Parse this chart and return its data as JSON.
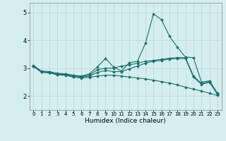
{
  "xlabel": "Humidex (Indice chaleur)",
  "xlim": [
    -0.5,
    23.5
  ],
  "ylim": [
    1.5,
    5.35
  ],
  "yticks": [
    2,
    3,
    4,
    5
  ],
  "xticks": [
    0,
    1,
    2,
    3,
    4,
    5,
    6,
    7,
    8,
    9,
    10,
    11,
    12,
    13,
    14,
    15,
    16,
    17,
    18,
    19,
    20,
    21,
    22,
    23
  ],
  "bg_color": "#d4eeed",
  "line_color": "#1a6e6e",
  "grid_color": "#b8d8d6",
  "lines": [
    {
      "x": [
        0,
        1,
        2,
        3,
        4,
        5,
        6,
        7,
        8,
        9,
        10,
        11,
        12,
        13,
        14,
        15,
        16,
        17,
        18,
        19,
        20,
        21,
        22,
        23
      ],
      "y": [
        3.1,
        2.9,
        2.88,
        2.82,
        2.8,
        2.75,
        2.72,
        2.8,
        3.05,
        3.35,
        3.05,
        2.9,
        3.2,
        3.25,
        3.9,
        4.95,
        4.75,
        4.15,
        3.75,
        3.4,
        3.38,
        2.5,
        2.55,
        2.1
      ]
    },
    {
      "x": [
        0,
        1,
        2,
        3,
        4,
        5,
        6,
        7,
        8,
        9,
        10,
        11,
        12,
        13,
        14,
        15,
        16,
        17,
        18,
        19,
        20,
        21,
        22,
        23
      ],
      "y": [
        3.08,
        2.88,
        2.85,
        2.78,
        2.78,
        2.73,
        2.7,
        2.75,
        2.95,
        3.0,
        3.0,
        3.08,
        3.12,
        3.18,
        3.25,
        3.28,
        3.32,
        3.36,
        3.38,
        3.38,
        2.72,
        2.45,
        2.52,
        2.08
      ]
    },
    {
      "x": [
        0,
        1,
        2,
        3,
        4,
        5,
        6,
        7,
        8,
        9,
        10,
        11,
        12,
        13,
        14,
        15,
        16,
        17,
        18,
        19,
        20,
        21,
        22,
        23
      ],
      "y": [
        3.07,
        2.87,
        2.84,
        2.78,
        2.77,
        2.7,
        2.68,
        2.72,
        2.85,
        2.92,
        2.88,
        2.88,
        2.98,
        3.08,
        3.18,
        3.25,
        3.28,
        3.33,
        3.35,
        3.35,
        2.68,
        2.42,
        2.5,
        2.06
      ]
    },
    {
      "x": [
        0,
        1,
        2,
        3,
        4,
        5,
        6,
        7,
        8,
        9,
        10,
        11,
        12,
        13,
        14,
        15,
        16,
        17,
        18,
        19,
        20,
        21,
        22,
        23
      ],
      "y": [
        3.06,
        2.86,
        2.83,
        2.76,
        2.75,
        2.68,
        2.65,
        2.67,
        2.72,
        2.75,
        2.75,
        2.72,
        2.68,
        2.65,
        2.62,
        2.57,
        2.52,
        2.47,
        2.4,
        2.32,
        2.25,
        2.18,
        2.1,
        2.02
      ]
    }
  ]
}
